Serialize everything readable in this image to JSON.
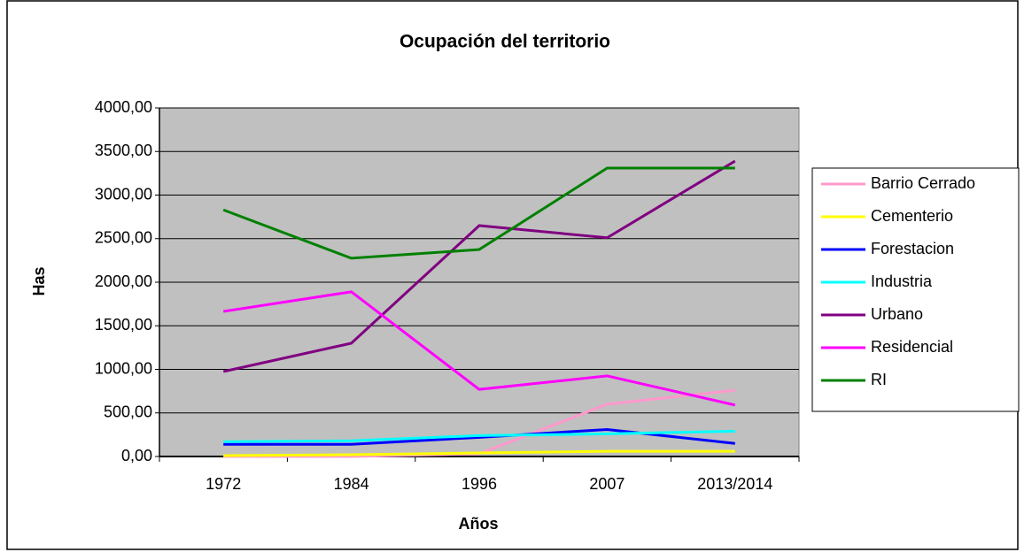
{
  "chart_data": {
    "type": "line",
    "title": "Ocupación del territorio",
    "x_label": "Años",
    "y_label": "Has",
    "categories": [
      "1972",
      "1984",
      "1996",
      "2007",
      "2013/2014"
    ],
    "series": [
      {
        "name": "Barrio Cerrado",
        "color": "#ff99cc",
        "values": [
          0,
          0,
          30,
          600,
          760
        ]
      },
      {
        "name": "Cementerio",
        "color": "#ffff00",
        "values": [
          10,
          20,
          40,
          60,
          60
        ]
      },
      {
        "name": "Forestacion",
        "color": "#0000ff",
        "values": [
          140,
          140,
          220,
          310,
          150
        ]
      },
      {
        "name": "Industria",
        "color": "#00ffff",
        "values": [
          170,
          180,
          240,
          260,
          290
        ]
      },
      {
        "name": "Urbano",
        "color": "#800080",
        "values": [
          975,
          1300,
          2650,
          2510,
          3390
        ]
      },
      {
        "name": "Residencial",
        "color": "#ff00ff",
        "values": [
          1665,
          1890,
          770,
          925,
          590
        ]
      },
      {
        "name": "RI",
        "color": "#008000",
        "values": [
          2830,
          2275,
          2375,
          3310,
          3310
        ]
      }
    ],
    "ylim": [
      0,
      4000
    ],
    "yticks": [
      {
        "value": 0,
        "label": "0,00"
      },
      {
        "value": 500,
        "label": "500,00"
      },
      {
        "value": 1000,
        "label": "1000,00"
      },
      {
        "value": 1500,
        "label": "1500,00"
      },
      {
        "value": 2000,
        "label": "2000,00"
      },
      {
        "value": 2500,
        "label": "2500,00"
      },
      {
        "value": 3000,
        "label": "3000,00"
      },
      {
        "value": 3500,
        "label": "3500,00"
      },
      {
        "value": 4000,
        "label": "4000,00"
      }
    ],
    "grid": true,
    "legend": "right",
    "plot_background": "#c0c0c0"
  }
}
